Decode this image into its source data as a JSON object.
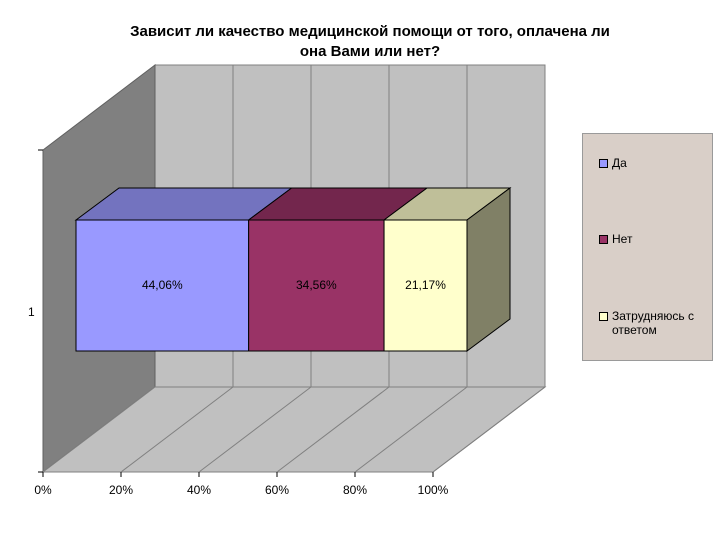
{
  "chart_data": {
    "type": "bar",
    "orientation": "horizontal",
    "stacked": "percent",
    "style": "3d",
    "title": "Зависит ли качество медицинской помощи от того, оплачена ли она Вами или нет?",
    "title_lines": [
      "Зависит ли качество медицинской помощи от того, оплачена ли",
      "она Вами или нет?"
    ],
    "categories": [
      "1"
    ],
    "series": [
      {
        "name": "Да",
        "values": [
          44.06
        ],
        "label": "44,06%",
        "color": "#9999ff"
      },
      {
        "name": "Нет",
        "values": [
          34.56
        ],
        "label": "34,56%",
        "color": "#993366"
      },
      {
        "name": "Затрудняюсь с ответом",
        "values": [
          21.17
        ],
        "label": "21,17%",
        "color": "#ffffcc"
      }
    ],
    "x_ticks": [
      "0%",
      "20%",
      "40%",
      "60%",
      "80%",
      "100%"
    ],
    "xlim": [
      0,
      100
    ],
    "grid": true,
    "legend": "right"
  }
}
